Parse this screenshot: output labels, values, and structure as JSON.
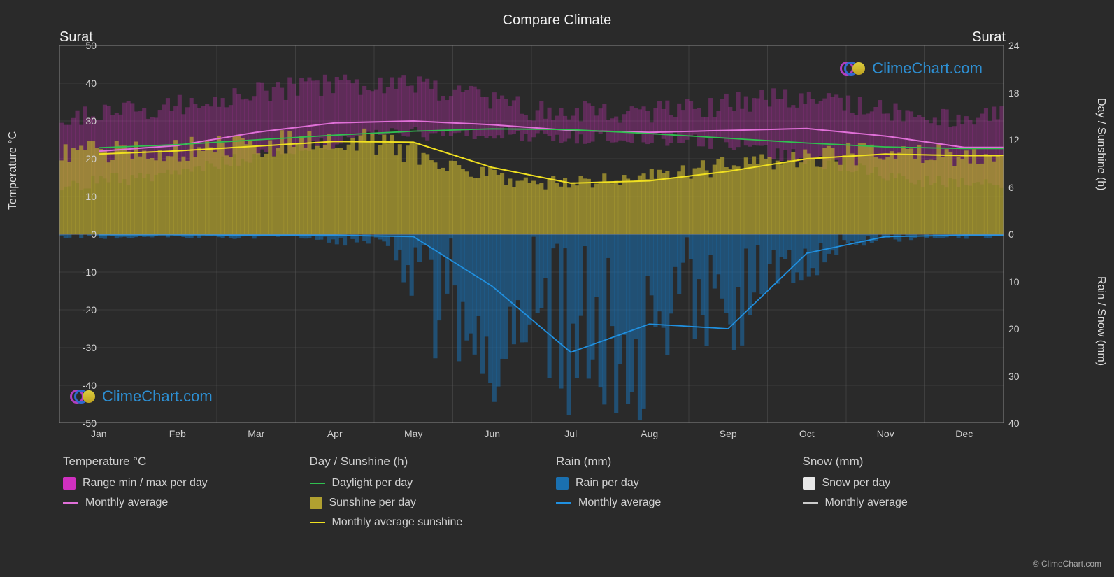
{
  "chart": {
    "type": "climate-multi-line",
    "title": "Compare Climate",
    "background_color": "#2a2a2a",
    "grid_color": "#666666",
    "grid_width": 0.5,
    "text_color": "#e0e0e0",
    "title_fontsize": 20,
    "axis_fontsize": 16,
    "tick_fontsize": 14,
    "city_left": "Surat",
    "city_right": "Surat",
    "x": {
      "labels": [
        "Jan",
        "Feb",
        "Mar",
        "Apr",
        "May",
        "Jun",
        "Jul",
        "Aug",
        "Sep",
        "Oct",
        "Nov",
        "Dec"
      ]
    },
    "y_left": {
      "label": "Temperature °C",
      "min": -50,
      "max": 50,
      "ticks": [
        -50,
        -40,
        -30,
        -20,
        -10,
        0,
        10,
        20,
        30,
        40,
        50
      ]
    },
    "y_right_top": {
      "label": "Day / Sunshine (h)",
      "min": 0,
      "max": 24,
      "ticks": [
        0,
        6,
        12,
        18,
        24
      ]
    },
    "y_right_bottom": {
      "label": "Rain / Snow (mm)",
      "min": 0,
      "max": 40,
      "ticks": [
        0,
        10,
        20,
        30,
        40
      ]
    },
    "series": {
      "temp_avg_monthly": {
        "color": "#e070d8",
        "line_width": 2,
        "values": [
          22,
          23.5,
          27,
          29.5,
          30,
          29,
          27.5,
          27,
          27.5,
          28,
          26,
          23
        ]
      },
      "temp_range_top": {
        "color": "#d030c0",
        "values": [
          30,
          33,
          36,
          39,
          40,
          38,
          33,
          32,
          33,
          36,
          34,
          31
        ]
      },
      "temp_range_bottom": {
        "color": "#d030c0",
        "values": [
          13,
          15,
          19,
          23,
          26,
          27,
          26,
          25.5,
          25,
          22,
          18,
          14
        ]
      },
      "daylight": {
        "color": "#30c050",
        "line_width": 1.8,
        "values_h": [
          11.0,
          11.4,
          12.0,
          12.6,
          13.1,
          13.4,
          13.3,
          12.8,
          12.2,
          11.6,
          11.1,
          10.9
        ]
      },
      "sunshine_avg": {
        "color": "#f0e020",
        "line_width": 2,
        "values_h": [
          10.2,
          10.6,
          11.2,
          11.8,
          11.7,
          8.5,
          6.5,
          6.8,
          8.0,
          9.6,
          10.2,
          10.0
        ]
      },
      "sunshine_fill": {
        "color": "#b0a030",
        "values_h": [
          10.2,
          10.6,
          11.2,
          11.8,
          11.7,
          8.5,
          6.5,
          6.8,
          8.0,
          9.6,
          10.2,
          10.0
        ]
      },
      "rain_avg": {
        "color": "#2090e0",
        "line_width": 1.8,
        "values_mm": [
          0.1,
          0.1,
          0.2,
          0.2,
          0.5,
          11,
          25,
          19,
          20,
          4,
          0.5,
          0.2
        ]
      },
      "rain_bars_max": {
        "color": "#1a70b0",
        "values_mm": [
          1,
          1,
          1,
          1,
          4,
          35,
          40,
          40,
          40,
          20,
          3,
          1
        ]
      },
      "snow_avg": {
        "color": "#e8e8e8",
        "line_width": 1.8,
        "values_mm": [
          0,
          0,
          0,
          0,
          0,
          0,
          0,
          0,
          0,
          0,
          0,
          0
        ]
      }
    },
    "colors": {
      "magenta_fill": "#c030b0",
      "pink_line": "#e070d8",
      "green_line": "#30c050",
      "olive_fill": "#b0a030",
      "yellow_line": "#f0e020",
      "blue_fill": "#1a70b0",
      "blue_line": "#2090e0",
      "white_fill": "#e8e8e8",
      "grey_line": "#cccccc"
    },
    "legend": [
      {
        "title": "Temperature °C",
        "items": [
          {
            "type": "box",
            "color": "#d030c0",
            "label": "Range min / max per day"
          },
          {
            "type": "line",
            "color": "#e070d8",
            "label": "Monthly average"
          }
        ]
      },
      {
        "title": "Day / Sunshine (h)",
        "items": [
          {
            "type": "line",
            "color": "#30c050",
            "label": "Daylight per day"
          },
          {
            "type": "box",
            "color": "#b0a030",
            "label": "Sunshine per day"
          },
          {
            "type": "line",
            "color": "#f0e020",
            "label": "Monthly average sunshine"
          }
        ]
      },
      {
        "title": "Rain (mm)",
        "items": [
          {
            "type": "box",
            "color": "#1a70b0",
            "label": "Rain per day"
          },
          {
            "type": "line",
            "color": "#2090e0",
            "label": "Monthly average"
          }
        ]
      },
      {
        "title": "Snow (mm)",
        "items": [
          {
            "type": "box",
            "color": "#e8e8e8",
            "label": "Snow per day"
          },
          {
            "type": "line",
            "color": "#cccccc",
            "label": "Monthly average"
          }
        ]
      }
    ],
    "watermark": "ClimeChart.com",
    "copyright": "© ClimeChart.com"
  }
}
